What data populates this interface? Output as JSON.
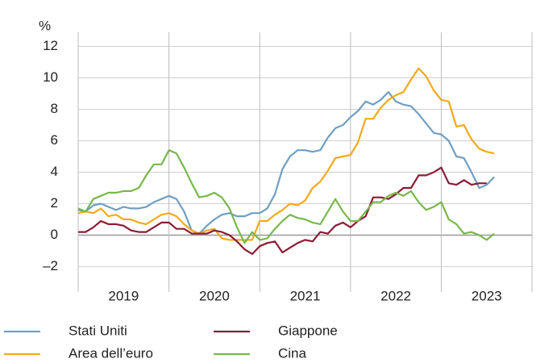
{
  "chart_data": {
    "type": "line",
    "ylabel": "%",
    "x": [
      2019,
      2019.083,
      2019.167,
      2019.25,
      2019.333,
      2019.417,
      2019.5,
      2019.583,
      2019.667,
      2019.75,
      2019.833,
      2019.917,
      2020,
      2020.083,
      2020.167,
      2020.25,
      2020.333,
      2020.417,
      2020.5,
      2020.583,
      2020.667,
      2020.75,
      2020.833,
      2020.917,
      2021,
      2021.083,
      2021.167,
      2021.25,
      2021.333,
      2021.417,
      2021.5,
      2021.583,
      2021.667,
      2021.75,
      2021.833,
      2021.917,
      2022,
      2022.083,
      2022.167,
      2022.25,
      2022.333,
      2022.417,
      2022.5,
      2022.583,
      2022.667,
      2022.75,
      2022.833,
      2022.917,
      2023,
      2023.083,
      2023.167,
      2023.25,
      2023.333,
      2023.417,
      2023.5,
      2023.583
    ],
    "series": [
      {
        "name": "Stati Uniti",
        "color": "#6f9fc4",
        "values": [
          1.6,
          1.5,
          1.9,
          2.0,
          1.8,
          1.6,
          1.8,
          1.7,
          1.7,
          1.8,
          2.1,
          2.3,
          2.5,
          2.3,
          1.5,
          0.3,
          0.1,
          0.6,
          1.0,
          1.3,
          1.4,
          1.2,
          1.2,
          1.4,
          1.4,
          1.7,
          2.6,
          4.2,
          5.0,
          5.4,
          5.4,
          5.3,
          5.4,
          6.2,
          6.8,
          7.0,
          7.5,
          7.9,
          8.5,
          8.3,
          8.6,
          9.1,
          8.5,
          8.3,
          8.2,
          7.7,
          7.1,
          6.5,
          6.4,
          6.0,
          5.0,
          4.9,
          4.0,
          3.0,
          3.2,
          3.7
        ]
      },
      {
        "name": "Area dell’euro",
        "color": "#f5a81e",
        "values": [
          1.4,
          1.5,
          1.4,
          1.7,
          1.2,
          1.3,
          1.0,
          1.0,
          0.8,
          0.7,
          1.0,
          1.3,
          1.4,
          1.2,
          0.7,
          0.3,
          0.1,
          0.3,
          0.4,
          -0.2,
          -0.3,
          -0.3,
          -0.3,
          -0.3,
          0.9,
          0.9,
          1.3,
          1.6,
          2.0,
          1.9,
          2.2,
          3.0,
          3.4,
          4.1,
          4.9,
          5.0,
          5.1,
          5.9,
          7.4,
          7.4,
          8.1,
          8.6,
          8.9,
          9.1,
          9.9,
          10.6,
          10.1,
          9.2,
          8.6,
          8.5,
          6.9,
          7.0,
          6.1,
          5.5,
          5.3,
          5.2
        ]
      },
      {
        "name": "Giappone",
        "color": "#8b1c34",
        "values": [
          0.2,
          0.2,
          0.5,
          0.9,
          0.7,
          0.7,
          0.6,
          0.3,
          0.2,
          0.2,
          0.5,
          0.8,
          0.8,
          0.4,
          0.4,
          0.1,
          0.1,
          0.1,
          0.3,
          0.2,
          0.0,
          -0.4,
          -0.9,
          -1.2,
          -0.7,
          -0.5,
          -0.4,
          -1.1,
          -0.8,
          -0.5,
          -0.3,
          -0.4,
          0.2,
          0.1,
          0.6,
          0.8,
          0.5,
          0.9,
          1.2,
          2.4,
          2.4,
          2.3,
          2.6,
          3.0,
          3.0,
          3.8,
          3.8,
          4.0,
          4.3,
          3.3,
          3.2,
          3.5,
          3.2,
          3.3,
          3.3,
          null
        ]
      },
      {
        "name": "Cina",
        "color": "#78b84c",
        "values": [
          1.7,
          1.5,
          2.3,
          2.5,
          2.7,
          2.7,
          2.8,
          2.8,
          3.0,
          3.8,
          4.5,
          4.5,
          5.4,
          5.2,
          4.3,
          3.3,
          2.4,
          2.5,
          2.7,
          2.4,
          1.7,
          0.5,
          -0.5,
          0.2,
          -0.3,
          -0.2,
          0.4,
          0.9,
          1.3,
          1.1,
          1.0,
          0.8,
          0.7,
          1.5,
          2.3,
          1.5,
          0.9,
          0.9,
          1.5,
          2.1,
          2.1,
          2.5,
          2.7,
          2.5,
          2.8,
          2.1,
          1.6,
          1.8,
          2.1,
          1.0,
          0.7,
          0.1,
          0.2,
          0.0,
          -0.3,
          0.1
        ]
      }
    ],
    "xlim": [
      2019,
      2024
    ],
    "xticks": [
      {
        "value": 2019.5,
        "label": "2019"
      },
      {
        "value": 2020.5,
        "label": "2020"
      },
      {
        "value": 2021.5,
        "label": "2021"
      },
      {
        "value": 2022.5,
        "label": "2022"
      },
      {
        "value": 2023.5,
        "label": "2023"
      }
    ],
    "ylim": [
      -3,
      12.9
    ],
    "yticks": [
      {
        "value": -2,
        "label": "–2"
      },
      0,
      2,
      4,
      6,
      8,
      10,
      12
    ],
    "grid": true
  }
}
